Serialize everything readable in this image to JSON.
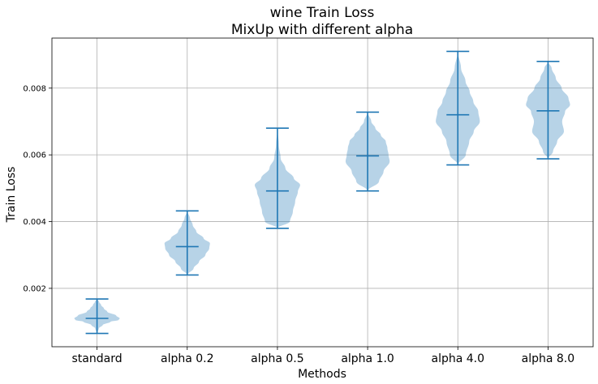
{
  "chart_data": {
    "type": "violin",
    "title": [
      "wine Train Loss",
      "MixUp with different alpha"
    ],
    "xlabel": "Methods",
    "ylabel": "Train Loss",
    "categories": [
      "standard",
      "alpha 0.2",
      "alpha 0.5",
      "alpha 1.0",
      "alpha 4.0",
      "alpha 8.0"
    ],
    "yticks": [
      "0.002",
      "0.004",
      "0.006",
      "0.008"
    ],
    "ylim": [
      0.00025,
      0.0095
    ],
    "grid": true,
    "colors": {
      "body": "#1f77b4",
      "body_opacity": 0.32,
      "lines": "#1f77b4"
    },
    "series": [
      {
        "category": "standard",
        "min": 0.00065,
        "median": 0.0011,
        "max": 0.00168,
        "density": [
          [
            0.00065,
            0.0
          ],
          [
            0.0008,
            0.08
          ],
          [
            0.0009,
            0.25
          ],
          [
            0.001,
            0.6
          ],
          [
            0.00105,
            0.95
          ],
          [
            0.0011,
            1.0
          ],
          [
            0.00118,
            0.85
          ],
          [
            0.0013,
            0.45
          ],
          [
            0.0014,
            0.3
          ],
          [
            0.0015,
            0.18
          ],
          [
            0.0016,
            0.09
          ],
          [
            0.00168,
            0.0
          ]
        ]
      },
      {
        "category": "alpha 0.2",
        "min": 0.0024,
        "median": 0.00325,
        "max": 0.00432,
        "density": [
          [
            0.0024,
            0.0
          ],
          [
            0.0026,
            0.28
          ],
          [
            0.0028,
            0.52
          ],
          [
            0.003,
            0.8
          ],
          [
            0.0032,
            0.97
          ],
          [
            0.00335,
            1.0
          ],
          [
            0.0035,
            0.72
          ],
          [
            0.0037,
            0.4
          ],
          [
            0.0039,
            0.24
          ],
          [
            0.0041,
            0.12
          ],
          [
            0.00432,
            0.0
          ]
        ]
      },
      {
        "category": "alpha 0.5",
        "min": 0.0038,
        "median": 0.00492,
        "max": 0.0068,
        "density": [
          [
            0.0038,
            0.0
          ],
          [
            0.004,
            0.55
          ],
          [
            0.0043,
            0.68
          ],
          [
            0.0046,
            0.78
          ],
          [
            0.0049,
            0.9
          ],
          [
            0.0051,
            1.0
          ],
          [
            0.0053,
            0.72
          ],
          [
            0.0056,
            0.35
          ],
          [
            0.0059,
            0.14
          ],
          [
            0.0063,
            0.06
          ],
          [
            0.0068,
            0.0
          ]
        ]
      },
      {
        "category": "alpha 1.0",
        "min": 0.00492,
        "median": 0.00597,
        "max": 0.00728,
        "density": [
          [
            0.00492,
            0.0
          ],
          [
            0.0052,
            0.5
          ],
          [
            0.0055,
            0.7
          ],
          [
            0.0058,
            0.97
          ],
          [
            0.006,
            0.92
          ],
          [
            0.0062,
            0.87
          ],
          [
            0.0064,
            0.8
          ],
          [
            0.0066,
            0.58
          ],
          [
            0.0068,
            0.34
          ],
          [
            0.007,
            0.16
          ],
          [
            0.00728,
            0.0
          ]
        ]
      },
      {
        "category": "alpha 4.0",
        "min": 0.0057,
        "median": 0.0072,
        "max": 0.0091,
        "density": [
          [
            0.0057,
            0.0
          ],
          [
            0.006,
            0.35
          ],
          [
            0.0064,
            0.5
          ],
          [
            0.0067,
            0.7
          ],
          [
            0.007,
            0.97
          ],
          [
            0.0073,
            0.9
          ],
          [
            0.0076,
            0.68
          ],
          [
            0.0079,
            0.52
          ],
          [
            0.0082,
            0.34
          ],
          [
            0.0086,
            0.14
          ],
          [
            0.0091,
            0.0
          ]
        ]
      },
      {
        "category": "alpha 8.0",
        "min": 0.00588,
        "median": 0.00732,
        "max": 0.0088,
        "density": [
          [
            0.00588,
            0.0
          ],
          [
            0.0061,
            0.22
          ],
          [
            0.0064,
            0.4
          ],
          [
            0.0067,
            0.7
          ],
          [
            0.007,
            0.62
          ],
          [
            0.0073,
            0.75
          ],
          [
            0.0075,
            0.97
          ],
          [
            0.0077,
            0.9
          ],
          [
            0.008,
            0.6
          ],
          [
            0.0083,
            0.34
          ],
          [
            0.0086,
            0.16
          ],
          [
            0.0088,
            0.0
          ]
        ]
      }
    ]
  }
}
